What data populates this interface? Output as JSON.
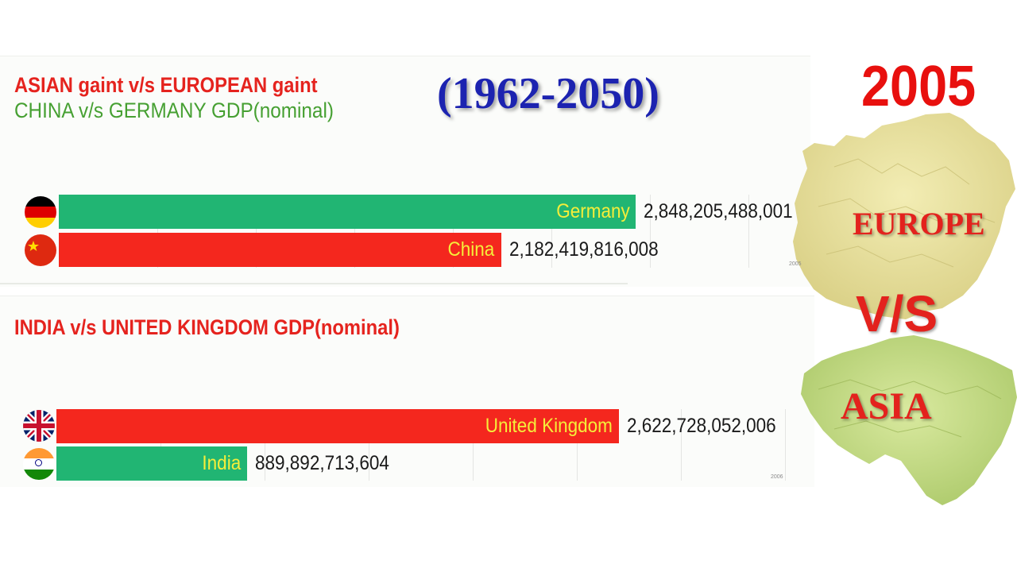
{
  "header": {
    "year_range": "(1962-2050)",
    "current_year": "2005"
  },
  "map_words": {
    "europe": "EUROPE",
    "vs": "V/S",
    "asia": "ASIA"
  },
  "chart_data": [
    {
      "type": "bar",
      "title": "ASIAN gaint v/s EUROPEAN gaint",
      "subtitle": "CHINA v/s GERMANY GDP(nominal)",
      "year_watermark": "2005",
      "categories": [
        "Germany",
        "China"
      ],
      "values": [
        2848205488001,
        2182419816008
      ],
      "value_labels": [
        "2,848,205,488,001",
        "2,182,419,816,008"
      ],
      "colors": [
        "#21b573",
        "#f4271e"
      ],
      "flags": [
        "germany-flag-icon",
        "china-flag-icon"
      ],
      "xlim": [
        0,
        3450000000000
      ],
      "grid": true
    },
    {
      "type": "bar",
      "title": "INDIA v/s UNITED KINGDOM GDP(nominal)",
      "year_watermark": "2006",
      "categories": [
        "United Kingdom",
        "India"
      ],
      "values": [
        2622728052006,
        889892713604
      ],
      "value_labels": [
        "2,622,728,052,006",
        "889,892,713,604"
      ],
      "colors": [
        "#f4271e",
        "#21b573"
      ],
      "flags": [
        "uk-flag-icon",
        "india-flag-icon"
      ],
      "xlim": [
        0,
        3150000000000
      ],
      "grid": true
    }
  ]
}
